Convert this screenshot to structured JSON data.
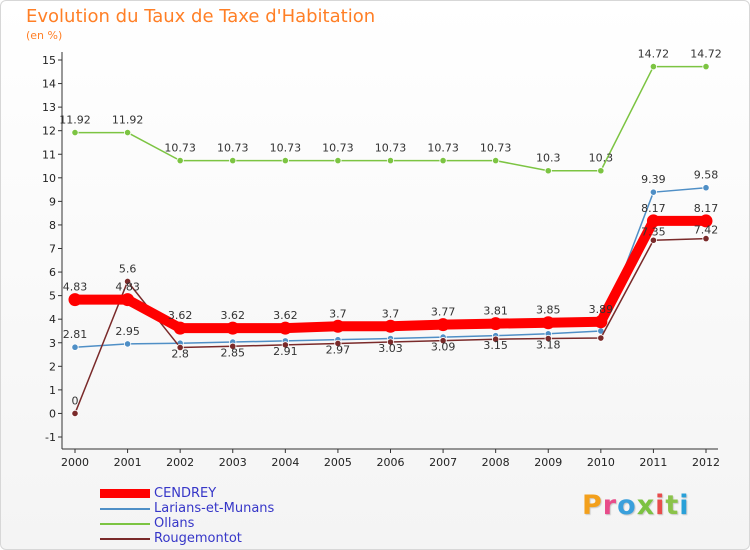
{
  "header": {
    "title": "Evolution du Taux de Taxe d'Habitation",
    "unit": "(en %)"
  },
  "logo": {
    "text": "Proxiti",
    "colors": [
      "#f3a01c",
      "#e84c8a",
      "#3aa0dc",
      "#7cc242",
      "#e84c4c",
      "#8bc34a",
      "#29a0d8"
    ]
  },
  "chart_data": {
    "type": "line",
    "title": "Evolution du Taux de Taxe d'Habitation",
    "ylabel": "(en %)",
    "xlabel": "",
    "x": [
      "2000",
      "2001",
      "2002",
      "2003",
      "2004",
      "2005",
      "2006",
      "2007",
      "2008",
      "2009",
      "2010",
      "2011",
      "2012"
    ],
    "ylim": [
      -1,
      15
    ],
    "yticks": [
      -1,
      0,
      1,
      2,
      3,
      4,
      5,
      6,
      7,
      8,
      9,
      10,
      11,
      12,
      13,
      14,
      15
    ],
    "grid": false,
    "legend_position": "bottom-left",
    "series": [
      {
        "name": "CENDREY",
        "color": "#ff0000",
        "values": [
          4.83,
          4.83,
          3.62,
          3.62,
          3.62,
          3.7,
          3.7,
          3.77,
          3.81,
          3.85,
          3.89,
          8.17,
          8.17
        ],
        "labels": [
          "4.83",
          "4.83",
          "3.62",
          "3.62",
          "3.62",
          "3.7",
          "3.7",
          "3.77",
          "3.81",
          "3.85",
          "3.89",
          "8.17",
          "8.17"
        ]
      },
      {
        "name": "Larians-et-Munans",
        "color": "#4f8fc6",
        "values": [
          2.81,
          2.95,
          2.98,
          3.03,
          3.08,
          3.13,
          3.18,
          3.24,
          3.3,
          3.38,
          3.5,
          9.39,
          9.58
        ],
        "labels": [
          "2.81",
          "2.95",
          "",
          "",
          "",
          "",
          "",
          "",
          "",
          "",
          "",
          "9.39",
          "9.58"
        ]
      },
      {
        "name": "Ollans",
        "color": "#7cc442",
        "values": [
          11.92,
          11.92,
          10.73,
          10.73,
          10.73,
          10.73,
          10.73,
          10.73,
          10.73,
          10.3,
          10.3,
          14.72,
          14.72
        ],
        "labels": [
          "11.92",
          "11.92",
          "10.73",
          "10.73",
          "10.73",
          "10.73",
          "10.73",
          "10.73",
          "10.73",
          "10.3",
          "10.3",
          "14.72",
          "14.72"
        ]
      },
      {
        "name": "Rougemontot",
        "color": "#7a2a2a",
        "values": [
          0,
          5.6,
          2.8,
          2.85,
          2.91,
          2.97,
          3.03,
          3.09,
          3.15,
          3.18,
          3.2,
          7.35,
          7.42
        ],
        "labels": [
          "0",
          "5.6",
          "2.8",
          "2.85",
          "2.91",
          "2.97",
          "3.03",
          "3.09",
          "3.15",
          "3.18",
          "",
          "7.35",
          "7.42"
        ]
      }
    ]
  }
}
